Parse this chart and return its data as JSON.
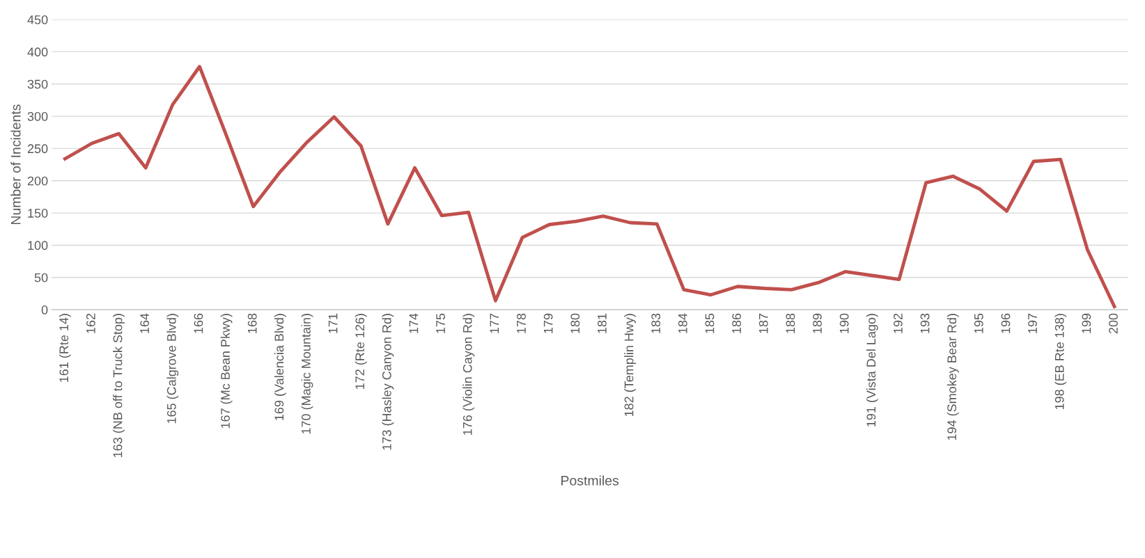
{
  "chart_data": {
    "type": "line",
    "xlabel": "Postmiles",
    "ylabel": "Number of Incidents",
    "categories": [
      "161 (Rte 14)",
      "162",
      "163 (NB off to Truck Stop)",
      "164",
      "165 (Calgrove Blvd)",
      "166",
      "167 (Mc Bean Pkwy)",
      "168",
      "169 (Valencia Blvd)",
      "170 (Magic Mountain)",
      "171",
      "172 (Rte 126)",
      "173 (Hasley Canyon Rd)",
      "174",
      "175",
      "176 (Violin Cayon Rd)",
      "177",
      "178",
      "179",
      "180",
      "181",
      "182 (Templin Hwy)",
      "183",
      "184",
      "185",
      "186",
      "187",
      "188",
      "189",
      "190",
      "191 (Vista Del Lago)",
      "192",
      "193",
      "194 (Smokey Bear Rd)",
      "195",
      "196",
      "197",
      "198 (EB Rte 138)",
      "199",
      "200"
    ],
    "series": [
      {
        "color": "#c0504d",
        "values": [
          234,
          258,
          273,
          220,
          318,
          377,
          270,
          160,
          214,
          260,
          299,
          254,
          133,
          220,
          146,
          151,
          14,
          112,
          132,
          137,
          145,
          135,
          133,
          31,
          23,
          36,
          33,
          31,
          42,
          59,
          53,
          47,
          197,
          207,
          187,
          153,
          230,
          233,
          93,
          5
        ]
      }
    ],
    "ylim": [
      0,
      450
    ],
    "yticks": [
      0,
      50,
      100,
      150,
      200,
      250,
      300,
      350,
      400,
      450
    ],
    "grid": "y",
    "legend": false
  }
}
